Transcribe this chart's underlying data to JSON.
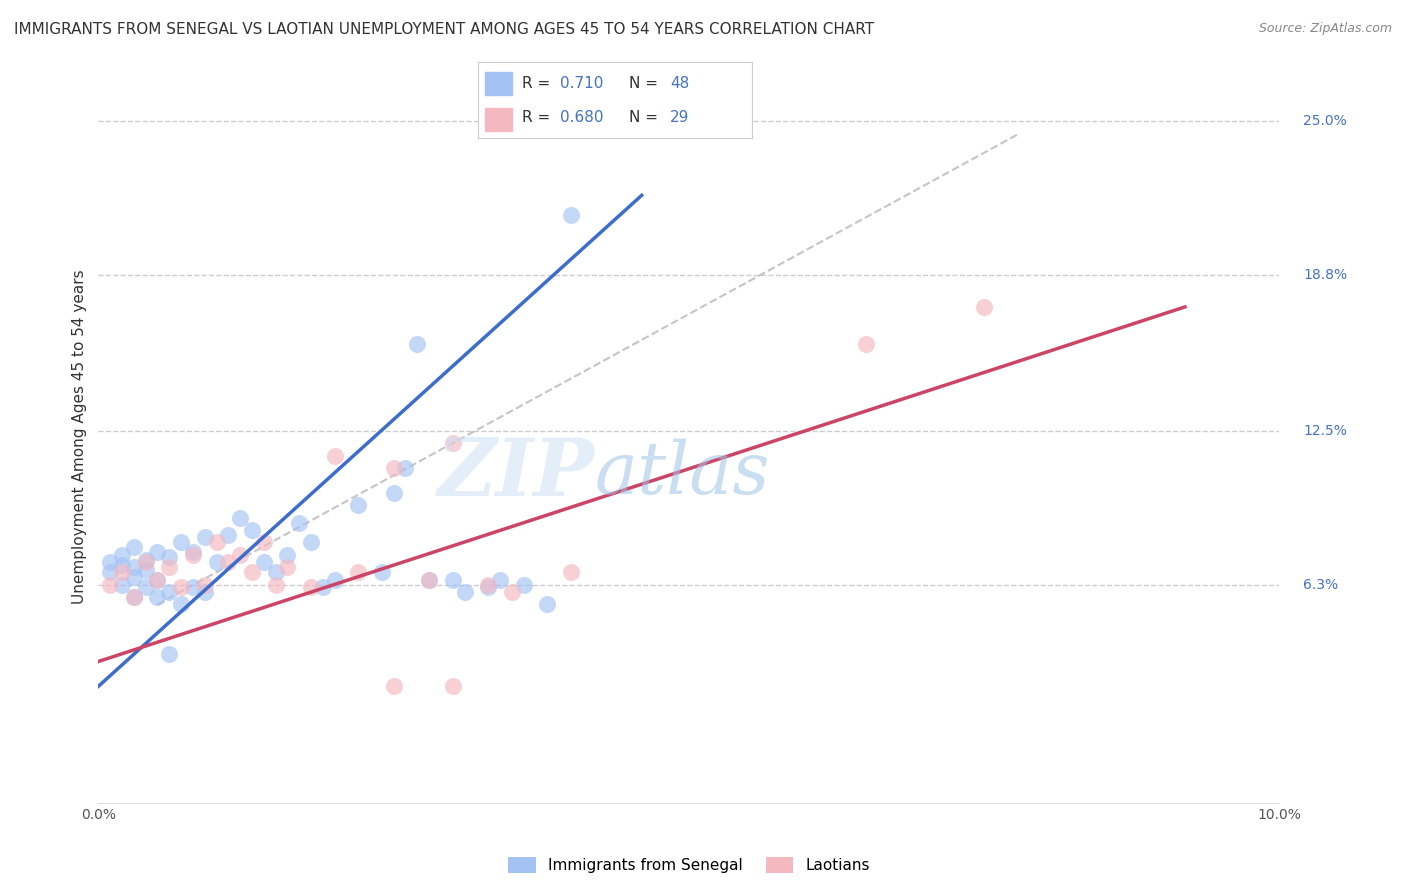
{
  "title": "IMMIGRANTS FROM SENEGAL VS LAOTIAN UNEMPLOYMENT AMONG AGES 45 TO 54 YEARS CORRELATION CHART",
  "source": "Source: ZipAtlas.com",
  "ylabel": "Unemployment Among Ages 45 to 54 years",
  "xlim": [
    0.0,
    0.1
  ],
  "ylim": [
    -0.025,
    0.27
  ],
  "xticks": [
    0.0,
    0.02,
    0.04,
    0.06,
    0.08,
    0.1
  ],
  "xtick_labels": [
    "0.0%",
    "",
    "",
    "",
    "",
    "10.0%"
  ],
  "ytick_right_vals": [
    0.063,
    0.125,
    0.188,
    0.25
  ],
  "ytick_right_labels": [
    "6.3%",
    "12.5%",
    "18.8%",
    "25.0%"
  ],
  "blue_color": "#a4c2f4",
  "pink_color": "#f4b8c1",
  "line_blue": "#3d6dcc",
  "line_pink": "#cc4466",
  "tick_label_blue": "#4472c4",
  "watermark_text": "ZIPatlas",
  "blue_scatter_x": [
    0.001,
    0.001,
    0.002,
    0.002,
    0.002,
    0.003,
    0.003,
    0.003,
    0.003,
    0.004,
    0.004,
    0.004,
    0.005,
    0.005,
    0.005,
    0.006,
    0.006,
    0.007,
    0.007,
    0.008,
    0.008,
    0.009,
    0.009,
    0.01,
    0.011,
    0.012,
    0.013,
    0.014,
    0.015,
    0.016,
    0.017,
    0.018,
    0.019,
    0.02,
    0.022,
    0.024,
    0.025,
    0.026,
    0.027,
    0.028,
    0.03,
    0.031,
    0.033,
    0.034,
    0.036,
    0.038,
    0.04,
    0.006
  ],
  "blue_scatter_y": [
    0.068,
    0.072,
    0.063,
    0.071,
    0.075,
    0.058,
    0.066,
    0.07,
    0.078,
    0.062,
    0.069,
    0.073,
    0.058,
    0.065,
    0.076,
    0.06,
    0.074,
    0.055,
    0.08,
    0.062,
    0.076,
    0.06,
    0.082,
    0.072,
    0.083,
    0.09,
    0.085,
    0.072,
    0.068,
    0.075,
    0.088,
    0.08,
    0.062,
    0.065,
    0.095,
    0.068,
    0.1,
    0.11,
    0.16,
    0.065,
    0.065,
    0.06,
    0.062,
    0.065,
    0.063,
    0.055,
    0.212,
    0.035
  ],
  "pink_scatter_x": [
    0.001,
    0.002,
    0.003,
    0.004,
    0.005,
    0.006,
    0.007,
    0.008,
    0.009,
    0.01,
    0.011,
    0.012,
    0.013,
    0.014,
    0.015,
    0.016,
    0.018,
    0.02,
    0.022,
    0.025,
    0.028,
    0.03,
    0.033,
    0.035,
    0.04,
    0.065,
    0.075,
    0.03,
    0.025
  ],
  "pink_scatter_y": [
    0.063,
    0.068,
    0.058,
    0.072,
    0.065,
    0.07,
    0.062,
    0.075,
    0.063,
    0.08,
    0.072,
    0.075,
    0.068,
    0.08,
    0.063,
    0.07,
    0.062,
    0.115,
    0.068,
    0.11,
    0.065,
    0.12,
    0.063,
    0.06,
    0.068,
    0.16,
    0.175,
    0.022,
    0.022
  ],
  "blue_line_x": [
    0.0,
    0.046
  ],
  "blue_line_y": [
    0.022,
    0.22
  ],
  "pink_line_x": [
    0.0,
    0.092
  ],
  "pink_line_y": [
    0.032,
    0.175
  ],
  "ref_line_x": [
    0.005,
    0.078
  ],
  "ref_line_y": [
    0.055,
    0.245
  ],
  "background_color": "#ffffff",
  "grid_color": "#cccccc",
  "title_fontsize": 11,
  "axis_label_fontsize": 11,
  "tick_fontsize": 10,
  "legend_fontsize": 11
}
